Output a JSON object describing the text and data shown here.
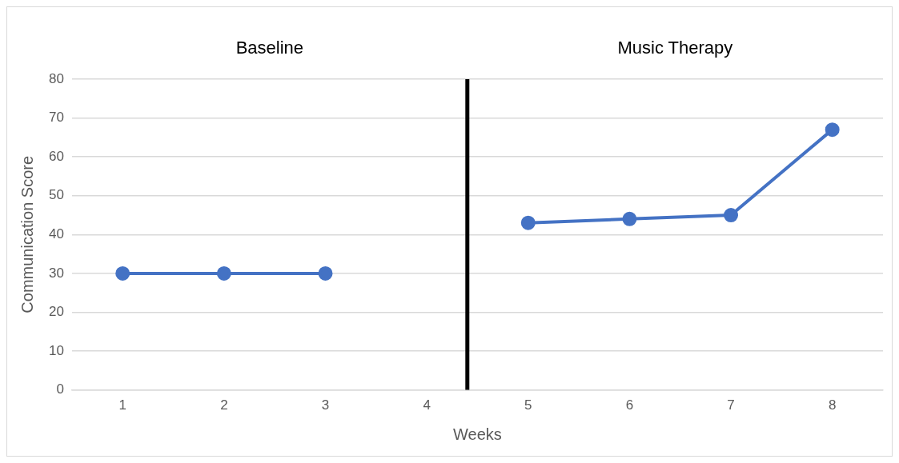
{
  "chart_data": {
    "type": "line",
    "xlabel": "Weeks",
    "ylabel": "Communication Score",
    "x": [
      1,
      2,
      3,
      4,
      5,
      6,
      7,
      8
    ],
    "series": [
      {
        "color": "#4472c4",
        "values": [
          30,
          30,
          30,
          null,
          43,
          44,
          45,
          67
        ]
      }
    ],
    "xlim": [
      0.5,
      8.5
    ],
    "xticks": [
      1,
      2,
      3,
      4,
      5,
      6,
      7,
      8
    ],
    "ylim": [
      0,
      80
    ],
    "yticks": [
      0,
      10,
      20,
      30,
      40,
      50,
      60,
      70,
      80
    ],
    "grid": "y",
    "legend": false,
    "marker": "circle",
    "line_style": "solid",
    "ref_lines": [
      {
        "axis": "x",
        "value": 4.4,
        "color": "#000000"
      }
    ],
    "annotations": [
      "Baseline",
      "Music Therapy"
    ]
  }
}
